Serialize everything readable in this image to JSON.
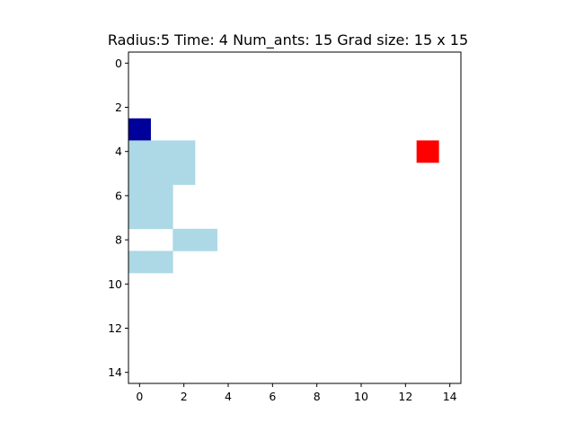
{
  "chart_data": {
    "type": "heatmap",
    "title": "Radius:5 Time: 4 Num_ants: 15 Grad size: 15 x 15",
    "xlabel": "",
    "ylabel": "",
    "grid_size": [
      15,
      15
    ],
    "xlim": [
      -0.5,
      14.5
    ],
    "ylim": [
      14.5,
      -0.5
    ],
    "x_ticks": [
      0,
      2,
      4,
      6,
      8,
      10,
      12,
      14
    ],
    "y_ticks": [
      0,
      2,
      4,
      6,
      8,
      10,
      12,
      14
    ],
    "grid": false,
    "legend": "none",
    "background_color": "#ffffff",
    "cells": [
      {
        "row": 3,
        "col": 0,
        "color": "#00009b"
      },
      {
        "row": 4,
        "col": 0,
        "color": "#add8e6"
      },
      {
        "row": 4,
        "col": 1,
        "color": "#add8e6"
      },
      {
        "row": 4,
        "col": 2,
        "color": "#add8e6"
      },
      {
        "row": 5,
        "col": 0,
        "color": "#add8e6"
      },
      {
        "row": 5,
        "col": 1,
        "color": "#add8e6"
      },
      {
        "row": 5,
        "col": 2,
        "color": "#add8e6"
      },
      {
        "row": 6,
        "col": 0,
        "color": "#add8e6"
      },
      {
        "row": 6,
        "col": 1,
        "color": "#add8e6"
      },
      {
        "row": 7,
        "col": 0,
        "color": "#add8e6"
      },
      {
        "row": 7,
        "col": 1,
        "color": "#add8e6"
      },
      {
        "row": 8,
        "col": 2,
        "color": "#add8e6"
      },
      {
        "row": 8,
        "col": 3,
        "color": "#add8e6"
      },
      {
        "row": 9,
        "col": 0,
        "color": "#add8e6"
      },
      {
        "row": 9,
        "col": 1,
        "color": "#add8e6"
      },
      {
        "row": 4,
        "col": 13,
        "color": "#ff0000"
      }
    ]
  }
}
